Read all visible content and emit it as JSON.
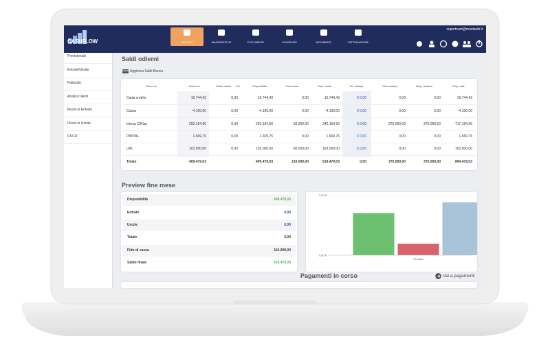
{
  "header": {
    "logo": "CASHFLOW",
    "user_email": "superteam@mustweb.it",
    "nav": [
      "REPORT",
      "ANAGRAFICHE",
      "DOCUMENTI",
      "SCADENZE",
      "MOVIMENTI",
      "FATTURAZIONE"
    ]
  },
  "sidebar": {
    "items": [
      "Previsionale",
      "Entrate/Uscite",
      "Fatturato",
      "Analisi Clienti",
      "Flussi in Entrata",
      "Flussi in Uscita",
      "DSCR"
    ]
  },
  "saldi": {
    "title": "Saldi odierni",
    "button": "Aggiorna Saldi Banca",
    "columns": [
      "Nome cc",
      "Saldo c/c",
      {
        "label": "Saldo valute",
        "unit": "Val"
      },
      "Disponibilità",
      "Fido cassa",
      "Disp. totale",
      "Tot. anticipi",
      "Fido anticipi",
      "Disp. residua",
      "Disp. utile"
    ],
    "rows": [
      [
        "Carta credito",
        "16.744,43",
        "0,00",
        "16.744,43",
        "0,00",
        "16.744,43",
        "€ 0,00",
        "0,00",
        "0,00",
        "16.744,43"
      ],
      [
        "Cassa",
        "-4.100,00",
        "0,00",
        "-4.100,00",
        "0,00",
        "-4.100,00",
        "€ 0,00",
        "0,00",
        "0,00",
        "-4.100,00"
      ],
      [
        "Intesa C/Risp",
        "292.164,90",
        "0,00",
        "292.164,90",
        "50.000,00",
        "342.164,90",
        "€ 0,00",
        "375.000,00",
        "375.000,00",
        "717.164,90"
      ],
      [
        "PAYPAL",
        "1.669,76",
        "0,00",
        "1.669,76",
        "0,00",
        "1.669,76",
        "€ 0,00",
        "0,00",
        "0,00",
        "1.669,76"
      ],
      [
        "UNI",
        "103.000,00",
        "0,00",
        "103.000,00",
        "60.000,00",
        "163.000,00",
        "€ 0,00",
        "0,00",
        "0,00",
        "163.000,00"
      ]
    ],
    "total": [
      "Totale",
      "409.479,03",
      null,
      "409.479,03",
      "110.000,00",
      "519.479,03",
      "0,00",
      "375.000,00",
      "375.000,00",
      "894.479,03"
    ]
  },
  "preview": {
    "title": "Preview fine mese",
    "rows": [
      {
        "label": "Disponibilità",
        "value": "409.479,03",
        "color": "#4caf50"
      },
      {
        "label": "Entrate",
        "value": "0,00",
        "color": "#1e4fa8"
      },
      {
        "label": "Uscite",
        "value": "0,00",
        "color": "#1e4fa8"
      },
      {
        "label": "Totale",
        "value": "0,00"
      },
      {
        "label": "Fido di cassa",
        "value": "110.000,00"
      },
      {
        "label": "Saldo finale",
        "value": "519.479,03",
        "color": "#4caf50"
      }
    ]
  },
  "chart_data": {
    "type": "bar",
    "categories": [
      "Preview"
    ],
    "series": [
      {
        "color": "#6cc070",
        "values": [
          0.7
        ]
      },
      {
        "color": "#d9626a",
        "values": [
          0.19
        ]
      },
      {
        "color": "#a9c4d9",
        "values": [
          0.88
        ]
      }
    ],
    "ylim": [
      0,
      1.05
    ],
    "yticks": [
      {
        "value": 0,
        "label": "0,00 €"
      },
      {
        "value": 1,
        "label": "1,00 €"
      }
    ]
  },
  "pagamenti": {
    "title": "Pagamenti in corso",
    "link": "Vai a pagamenti"
  }
}
